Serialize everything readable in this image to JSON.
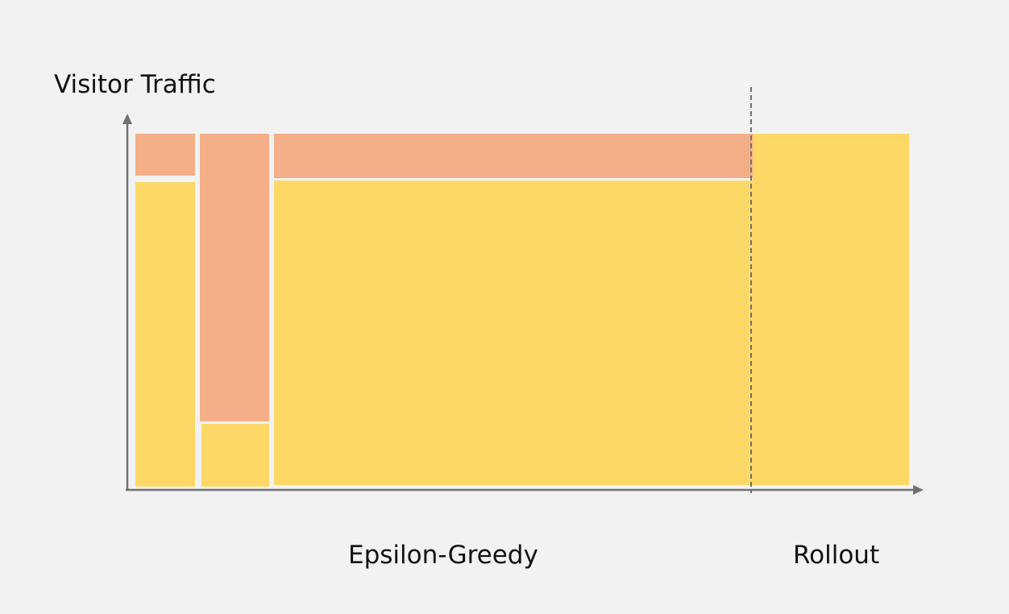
{
  "axis_label": "Visitor Traffic",
  "phases": [
    {
      "label": "Epsilon-Greedy"
    },
    {
      "label": "Rollout"
    }
  ],
  "colors": {
    "background": "#f2f2f2",
    "variant_a": "#fdd866",
    "variant_b": "#f4ae88",
    "axis": "#707070",
    "divider": "#707070"
  }
}
